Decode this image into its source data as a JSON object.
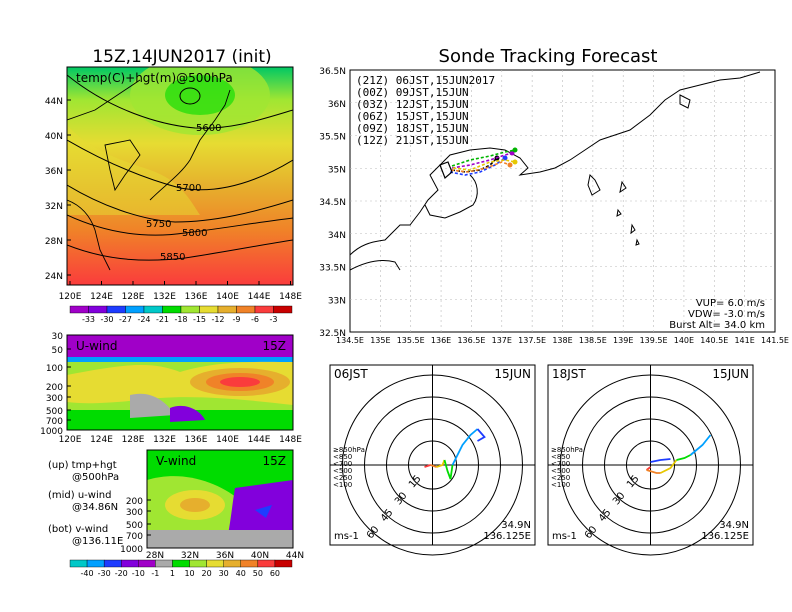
{
  "left_title": "15Z,14JUN2017 (init)",
  "right_title": "Sonde Tracking Forecast",
  "map500": {
    "label": "temp(C)+hgt(m)@500hPa",
    "contours": [
      "5600",
      "5700",
      "5750",
      "5800",
      "5850"
    ],
    "lat_labels": [
      "44N",
      "40N",
      "36N",
      "32N",
      "28N",
      "24N"
    ],
    "lon_labels": [
      "120E",
      "124E",
      "128E",
      "132E",
      "136E",
      "140E",
      "144E",
      "148E"
    ],
    "colorbar_labels": [
      "-33",
      "-30",
      "-27",
      "-24",
      "-21",
      "-18",
      "-15",
      "-12",
      "-9",
      "-6",
      "-3"
    ],
    "colorbar_colors": [
      "#a000c8",
      "#8200dc",
      "#1e3cff",
      "#00a0ff",
      "#00c8c8",
      "#00dc00",
      "#a0e632",
      "#e6dc32",
      "#e6af2d",
      "#f08228",
      "#fa3c3c",
      "#c80000"
    ]
  },
  "uwind": {
    "label": "U-wind",
    "time": "15Z",
    "p_labels": [
      "30",
      "50",
      "100",
      "200",
      "300",
      "500",
      "700",
      "1000"
    ],
    "lon_labels": [
      "120E",
      "124E",
      "128E",
      "132E",
      "136E",
      "140E",
      "144E",
      "148E"
    ]
  },
  "vwind": {
    "label": "V-wind",
    "time": "15Z",
    "p_labels": [
      "200",
      "300",
      "500",
      "700",
      "1000"
    ],
    "lat_labels": [
      "28N",
      "32N",
      "36N",
      "40N",
      "44N"
    ]
  },
  "legend_notes": [
    "(up) tmp+hgt",
    "@500hPa",
    "(mid) u-wind",
    "@34.86N",
    "(bot) v-wind",
    "@136.11E"
  ],
  "wind_colorbar": {
    "labels": [
      "-40",
      "-30",
      "-20",
      "-10",
      "-1",
      "1",
      "10",
      "20",
      "30",
      "40",
      "50",
      "60"
    ],
    "colors": [
      "#00c8c8",
      "#00a0ff",
      "#1e3cff",
      "#8200dc",
      "#a000c8",
      "#aaaaaa",
      "#00dc00",
      "#a0e632",
      "#e6dc32",
      "#e6af2d",
      "#f08228",
      "#fa3c3c",
      "#c80000"
    ]
  },
  "track_map": {
    "lat_labels": [
      "36.5N",
      "36N",
      "35.5N",
      "35N",
      "34.5N",
      "34N",
      "33.5N",
      "33N",
      "32.5N"
    ],
    "lon_labels": [
      "134.5E",
      "135E",
      "135.5E",
      "136E",
      "136.5E",
      "137E",
      "137.5E",
      "138E",
      "138.5E",
      "139E",
      "139.5E",
      "140E",
      "140.5E",
      "141E",
      "141.5E"
    ],
    "launches": [
      {
        "text": "(21Z)  06JST,15JUN2017",
        "color": "#000000"
      },
      {
        "text": "(00Z)  09JST,15JUN",
        "color": "#a000c8"
      },
      {
        "text": "(03Z)  12JST,15JUN",
        "color": "#1e3cff"
      },
      {
        "text": "(06Z)  15JST,15JUN",
        "color": "#00b400"
      },
      {
        "text": "(09Z)  18JST,15JUN",
        "color": "#e6c800"
      },
      {
        "text": "(12Z)  21JST,15JUN",
        "color": "#f08228"
      }
    ],
    "params": [
      "VUP=  6.0 m/s",
      "VDW= -3.0 m/s",
      "Burst Alt= 34.0 km"
    ]
  },
  "hodo1": {
    "time": "06JST",
    "date": "15JUN",
    "lat": "34.9N",
    "lon": "136.125E",
    "unit": "ms-1",
    "rings": [
      "15",
      "30",
      "45",
      "60"
    ],
    "levels": [
      "≥850hPa",
      "<850",
      "<700",
      "<500",
      "<250",
      "<100"
    ]
  },
  "hodo2": {
    "time": "18JST",
    "date": "15JUN",
    "lat": "34.9N",
    "lon": "136.125E",
    "unit": "ms-1",
    "rings": [
      "15",
      "30",
      "45",
      "60"
    ],
    "levels": [
      "≥850hPa",
      "<850",
      "<700",
      "<500",
      "<250",
      "<100"
    ]
  },
  "level_colors": [
    "#fa3c3c",
    "#f08228",
    "#e6c800",
    "#00dc00",
    "#00a0ff",
    "#1e3cff"
  ]
}
